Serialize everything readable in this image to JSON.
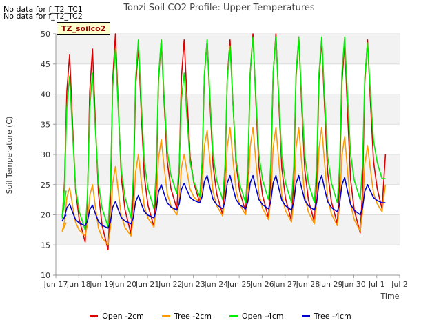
{
  "notes": [
    "No data for f_T2_TC1",
    "No data for f_T2_TC2"
  ],
  "badge": "TZ_soilco2",
  "chart_data": {
    "type": "line",
    "title": "Tonzi Soil CO2 Profile: Upper Temperatures",
    "xlabel": "Time",
    "ylabel": "Soil Temperature (C)",
    "xlim": [
      16,
      31
    ],
    "ylim": [
      10,
      50
    ],
    "x_ticks": [
      {
        "value": 16,
        "label": "Jun 17"
      },
      {
        "value": 17,
        "label": "Jun 18"
      },
      {
        "value": 18,
        "label": "Jun 19"
      },
      {
        "value": 19,
        "label": "Jun 20"
      },
      {
        "value": 20,
        "label": "Jun 21"
      },
      {
        "value": 21,
        "label": "Jun 22"
      },
      {
        "value": 22,
        "label": "Jun 23"
      },
      {
        "value": 23,
        "label": "Jun 24"
      },
      {
        "value": 24,
        "label": "Jun 25"
      },
      {
        "value": 25,
        "label": "Jun 26"
      },
      {
        "value": 26,
        "label": "Jun 27"
      },
      {
        "value": 27,
        "label": "Jun 28"
      },
      {
        "value": 28,
        "label": "Jun 29"
      },
      {
        "value": 29,
        "label": "Jun 30"
      },
      {
        "value": 30,
        "label": "Jul 1"
      },
      {
        "value": 31,
        "label": "Jul 2"
      }
    ],
    "y_ticks": [
      10,
      15,
      20,
      25,
      30,
      35,
      40,
      45,
      50
    ],
    "grid": true,
    "legend_position": "bottom",
    "series": [
      {
        "name": "Open -2cm",
        "color": "#dd0000",
        "days": [
          17,
          18,
          19,
          20,
          21,
          22,
          23,
          24,
          25,
          26,
          27,
          28,
          29,
          30,
          31
        ],
        "mins": [
          19.5,
          15.5,
          14.2,
          16.8,
          18.0,
          21.0,
          22.0,
          20.0,
          20.5,
          19.5,
          19.0,
          18.8,
          18.5,
          17.0,
          21.0
        ],
        "maxs": [
          46.5,
          47.5,
          50.0,
          48.0,
          49.0,
          49.0,
          49.0,
          49.0,
          50.0,
          50.0,
          49.5,
          49.0,
          48.5,
          49.0,
          30.0
        ]
      },
      {
        "name": "Tree -2cm",
        "color": "#ff9900",
        "days": [
          17,
          18,
          19,
          20,
          21,
          22,
          23,
          24,
          25,
          26,
          27,
          28,
          29,
          30,
          31
        ],
        "mins": [
          17.3,
          16.5,
          15.0,
          16.5,
          18.0,
          20.0,
          22.0,
          19.8,
          20.0,
          19.2,
          18.8,
          18.5,
          18.2,
          17.3,
          20.5
        ],
        "maxs": [
          24.5,
          25.0,
          28.0,
          30.0,
          32.5,
          30.0,
          34.0,
          34.5,
          34.5,
          34.5,
          34.5,
          34.5,
          33.0,
          31.5,
          25.0
        ],
        "start": 18.7
      },
      {
        "name": "Open -4cm",
        "color": "#00ee00",
        "days": [
          17,
          18,
          19,
          20,
          21,
          22,
          23,
          24,
          25,
          26,
          27,
          28,
          29,
          30,
          31
        ],
        "mins": [
          19.5,
          17.5,
          18.0,
          19.5,
          21.0,
          23.5,
          23.0,
          22.5,
          22.0,
          22.5,
          22.0,
          22.0,
          22.0,
          22.5,
          26.0
        ],
        "maxs": [
          43.0,
          43.5,
          47.5,
          49.0,
          49.0,
          43.5,
          49.0,
          48.0,
          49.5,
          49.5,
          49.5,
          49.5,
          49.5,
          48.5,
          26.0
        ],
        "start": 24.0
      },
      {
        "name": "Tree -4cm",
        "color": "#0000cc",
        "days": [
          17,
          18,
          19,
          20,
          21,
          22,
          23,
          24,
          25,
          26,
          27,
          28,
          29,
          30,
          31
        ],
        "mins": [
          19.0,
          18.2,
          17.8,
          18.5,
          19.5,
          20.8,
          22.0,
          21.0,
          21.0,
          21.0,
          20.8,
          20.8,
          20.5,
          20.0,
          22.0
        ],
        "maxs": [
          21.8,
          21.6,
          22.2,
          23.2,
          25.0,
          25.2,
          26.5,
          26.5,
          26.5,
          26.5,
          26.5,
          26.5,
          26.2,
          25.0,
          22.0
        ],
        "start": 20.0
      }
    ]
  }
}
